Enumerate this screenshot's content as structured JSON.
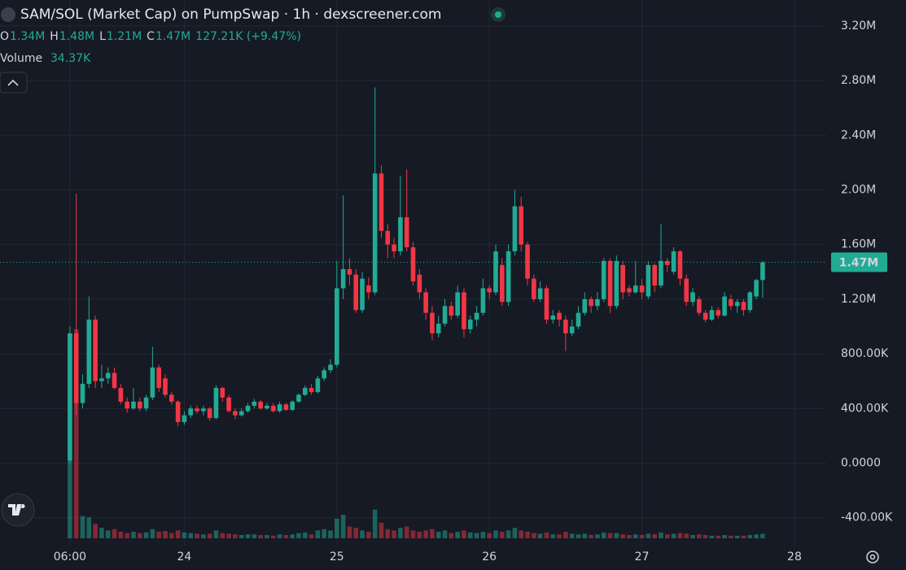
{
  "chart_data": {
    "type": "candlestick",
    "title": "SAM/SOL (Market Cap) on PumpSwap · 1h · dexscreener.com",
    "legend": [
      {
        "key": "O",
        "value": "1.34M"
      },
      {
        "key": "H",
        "value": "1.48M"
      },
      {
        "key": "L",
        "value": "1.21M"
      },
      {
        "key": "C",
        "value": "1.47M"
      }
    ],
    "change": "127.21K (+9.47%)",
    "volume_title": "Volume",
    "volume_value": "34.37K",
    "up_color": "#22ab94",
    "down_color": "#f23645",
    "grid": true,
    "xlim": [
      -11,
      119
    ],
    "xticks": [
      {
        "value": 0,
        "label": "06:00"
      },
      {
        "value": 18,
        "label": "24"
      },
      {
        "value": 42,
        "label": "25"
      },
      {
        "value": 66,
        "label": "26"
      },
      {
        "value": 90,
        "label": "27"
      },
      {
        "value": 114,
        "label": "28"
      }
    ],
    "ylim": [
      -610000,
      3390000
    ],
    "yticks": [
      {
        "value": 3200000,
        "label": "3.20M"
      },
      {
        "value": 2800000,
        "label": "2.80M"
      },
      {
        "value": 2400000,
        "label": "2.40M"
      },
      {
        "value": 2000000,
        "label": "2.00M"
      },
      {
        "value": 1600000,
        "label": "1.60M"
      },
      {
        "value": 1200000,
        "label": "1.20M"
      },
      {
        "value": 800000,
        "label": "800.00K"
      },
      {
        "value": 400000,
        "label": "400.00K"
      },
      {
        "value": 0,
        "label": "0.0000"
      },
      {
        "value": -400000,
        "label": "-400.00K"
      }
    ],
    "price_line": {
      "value": 1470000,
      "label": "1.47M"
    },
    "open": [
      20000,
      950000,
      440000,
      580000,
      1050000,
      600000,
      620000,
      660000,
      550000,
      450000,
      400000,
      450000,
      400000,
      480000,
      700000,
      620000,
      500000,
      450000,
      300000,
      350000,
      400000,
      380000,
      400000,
      330000,
      550000,
      480000,
      380000,
      350000,
      380000,
      420000,
      450000,
      400000,
      420000,
      380000,
      430000,
      390000,
      450000,
      500000,
      550000,
      520000,
      620000,
      680000,
      720000,
      1280000,
      1420000,
      1380000,
      1120000,
      1300000,
      1250000,
      2120000,
      1700000,
      1600000,
      1550000,
      1800000,
      1580000,
      1380000,
      1250000,
      1100000,
      950000,
      1020000,
      1150000,
      1080000,
      1250000,
      980000,
      1050000,
      1100000,
      1280000,
      1250000,
      1450000,
      1180000,
      1550000,
      1880000,
      1600000,
      1350000,
      1200000,
      1280000,
      1050000,
      1100000,
      1050000,
      950000,
      1000000,
      1100000,
      1200000,
      1150000,
      1200000,
      1480000,
      1150000,
      1450000,
      1280000,
      1250000,
      1300000,
      1220000,
      1450000,
      1300000,
      1480000,
      1400000,
      1550000,
      1350000,
      1180000,
      1200000,
      1100000,
      1050000,
      1120000,
      1080000,
      1200000,
      1150000,
      1180000,
      1120000,
      1220000,
      1340000
    ],
    "high": [
      1000000,
      1970000,
      650000,
      1220000,
      1080000,
      720000,
      700000,
      700000,
      580000,
      480000,
      550000,
      480000,
      500000,
      850000,
      720000,
      650000,
      520000,
      460000,
      380000,
      420000,
      420000,
      420000,
      410000,
      570000,
      560000,
      500000,
      400000,
      400000,
      440000,
      470000,
      460000,
      440000,
      440000,
      450000,
      440000,
      460000,
      510000,
      570000,
      580000,
      640000,
      700000,
      760000,
      1480000,
      1960000,
      1500000,
      1420000,
      1400000,
      1360000,
      2750000,
      2180000,
      1750000,
      1650000,
      2100000,
      2150000,
      1620000,
      1420000,
      1280000,
      1150000,
      1080000,
      1200000,
      1180000,
      1300000,
      1280000,
      1080000,
      1150000,
      1350000,
      1300000,
      1600000,
      1500000,
      1600000,
      2000000,
      1950000,
      1620000,
      1380000,
      1330000,
      1300000,
      1120000,
      1120000,
      1080000,
      1050000,
      1150000,
      1250000,
      1220000,
      1250000,
      1500000,
      1500000,
      1520000,
      1480000,
      1300000,
      1480000,
      1350000,
      1480000,
      1460000,
      1750000,
      1500000,
      1580000,
      1560000,
      1380000,
      1280000,
      1220000,
      1120000,
      1150000,
      1140000,
      1250000,
      1230000,
      1200000,
      1200000,
      1260000,
      1350000,
      1480000
    ],
    "low": [
      0,
      350000,
      400000,
      550000,
      550000,
      550000,
      580000,
      540000,
      430000,
      370000,
      390000,
      380000,
      380000,
      460000,
      520000,
      480000,
      430000,
      270000,
      280000,
      330000,
      360000,
      350000,
      310000,
      320000,
      450000,
      370000,
      320000,
      340000,
      370000,
      400000,
      390000,
      390000,
      370000,
      370000,
      380000,
      380000,
      440000,
      490000,
      500000,
      510000,
      600000,
      660000,
      700000,
      1200000,
      1300000,
      1100000,
      1100000,
      1200000,
      1230000,
      1650000,
      1500000,
      1500000,
      1520000,
      1550000,
      1300000,
      1200000,
      1050000,
      900000,
      920000,
      1000000,
      1050000,
      1060000,
      920000,
      950000,
      1000000,
      1080000,
      1200000,
      1230000,
      1150000,
      1150000,
      1520000,
      1550000,
      1300000,
      1180000,
      1180000,
      1020000,
      1020000,
      1000000,
      820000,
      930000,
      980000,
      1080000,
      1100000,
      1120000,
      1180000,
      1100000,
      1130000,
      1200000,
      1220000,
      1240000,
      1200000,
      1200000,
      1250000,
      1280000,
      1400000,
      1380000,
      1300000,
      1150000,
      1150000,
      1080000,
      1030000,
      1040000,
      1060000,
      1070000,
      1120000,
      1100000,
      1080000,
      1100000,
      1200000,
      1210000
    ],
    "close": [
      950000,
      440000,
      580000,
      1050000,
      600000,
      620000,
      660000,
      550000,
      450000,
      400000,
      450000,
      400000,
      480000,
      700000,
      550000,
      500000,
      450000,
      300000,
      350000,
      400000,
      380000,
      400000,
      330000,
      550000,
      480000,
      380000,
      350000,
      380000,
      420000,
      450000,
      400000,
      420000,
      380000,
      430000,
      390000,
      450000,
      500000,
      550000,
      520000,
      620000,
      680000,
      720000,
      1280000,
      1420000,
      1380000,
      1120000,
      1350000,
      1250000,
      2120000,
      1700000,
      1600000,
      1550000,
      1800000,
      1580000,
      1330000,
      1250000,
      1100000,
      950000,
      1020000,
      1150000,
      1080000,
      1250000,
      980000,
      1050000,
      1100000,
      1280000,
      1250000,
      1550000,
      1180000,
      1550000,
      1880000,
      1600000,
      1350000,
      1200000,
      1280000,
      1050000,
      1080000,
      1050000,
      950000,
      1000000,
      1100000,
      1200000,
      1150000,
      1200000,
      1480000,
      1150000,
      1480000,
      1250000,
      1250000,
      1300000,
      1250000,
      1450000,
      1300000,
      1480000,
      1450000,
      1550000,
      1350000,
      1180000,
      1250000,
      1100000,
      1050000,
      1120000,
      1080000,
      1220000,
      1150000,
      1180000,
      1120000,
      1250000,
      1340000,
      1470000
    ],
    "volume": [
      600000,
      1600000,
      170000,
      160000,
      110000,
      80000,
      60000,
      70000,
      50000,
      40000,
      50000,
      40000,
      45000,
      70000,
      50000,
      55000,
      40000,
      60000,
      45000,
      40000,
      35000,
      30000,
      35000,
      60000,
      40000,
      35000,
      30000,
      25000,
      30000,
      30000,
      25000,
      25000,
      20000,
      30000,
      25000,
      30000,
      40000,
      45000,
      30000,
      60000,
      70000,
      60000,
      150000,
      180000,
      90000,
      80000,
      60000,
      50000,
      220000,
      120000,
      70000,
      60000,
      80000,
      90000,
      60000,
      50000,
      60000,
      70000,
      50000,
      60000,
      40000,
      50000,
      60000,
      45000,
      40000,
      50000,
      40000,
      60000,
      50000,
      60000,
      80000,
      60000,
      50000,
      40000,
      35000,
      45000,
      30000,
      30000,
      50000,
      35000,
      30000,
      35000,
      25000,
      30000,
      45000,
      40000,
      40000,
      30000,
      25000,
      30000,
      25000,
      35000,
      30000,
      45000,
      30000,
      35000,
      40000,
      35000,
      25000,
      30000,
      25000,
      20000,
      20000,
      25000,
      20000,
      20000,
      20000,
      25000,
      30000,
      34370
    ]
  }
}
